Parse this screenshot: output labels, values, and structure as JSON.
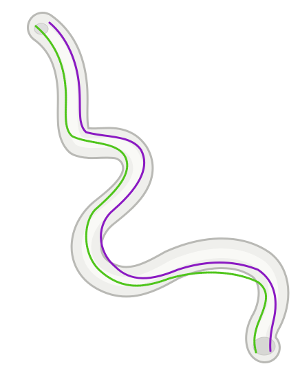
{
  "scene": {
    "background_color": "#ffffff",
    "tube_color": "#efefec",
    "tube_shadow_color": "#b9b9b5",
    "tube_edge_color": "#c9c9c5",
    "curves": [
      {
        "name": "purple-curve",
        "color": "#8a19c2"
      },
      {
        "name": "green-curve",
        "color": "#4fc51b"
      }
    ]
  }
}
